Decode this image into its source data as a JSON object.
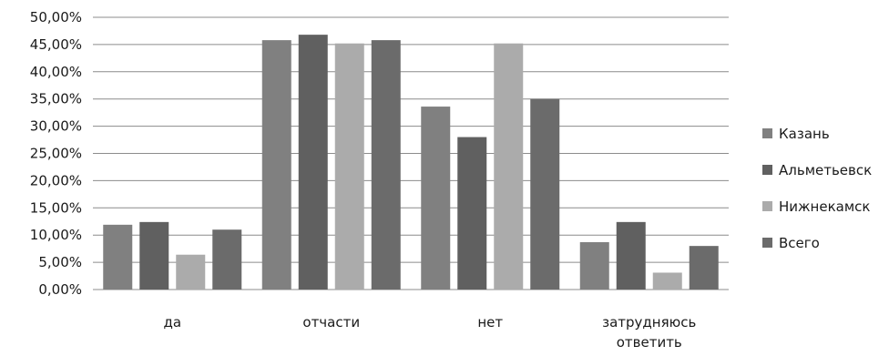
{
  "chart_data": {
    "type": "bar",
    "categories": [
      [
        "да"
      ],
      [
        "отчасти"
      ],
      [
        "нет"
      ],
      [
        "затрудняюсь",
        "ответить"
      ]
    ],
    "series": [
      {
        "name": "Казань",
        "color": "#808080",
        "values": [
          11.9,
          45.8,
          33.6,
          8.7
        ]
      },
      {
        "name": "Альметьевск",
        "color": "#606060",
        "values": [
          12.4,
          46.8,
          28.0,
          12.4
        ]
      },
      {
        "name": "Нижнекамск",
        "color": "#ababab",
        "values": [
          6.4,
          45.2,
          45.2,
          3.1
        ]
      },
      {
        "name": "Всего",
        "color": "#6b6b6b",
        "values": [
          11.0,
          45.8,
          35.0,
          8.0
        ]
      }
    ],
    "ylim": [
      0,
      50
    ],
    "yticks": [
      "0,00%",
      "5,00%",
      "10,00%",
      "15,00%",
      "20,00%",
      "25,00%",
      "30,00%",
      "35,00%",
      "40,00%",
      "45,00%",
      "50,00%"
    ],
    "grid": true,
    "legend_position": "right",
    "gridline_color": "#8c8c8c"
  }
}
